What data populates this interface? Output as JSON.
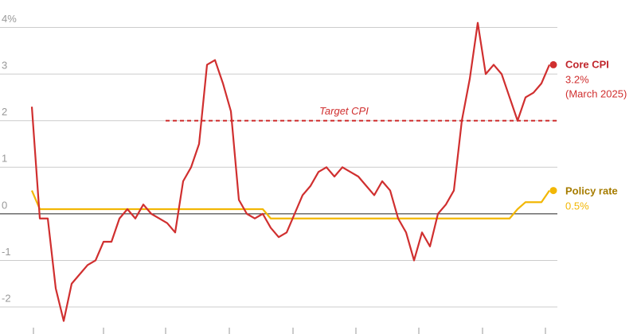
{
  "chart_data": {
    "type": "line",
    "categories": [
      null,
      null,
      null,
      null,
      null,
      null,
      null,
      null,
      null,
      null,
      null,
      null,
      null,
      null,
      null,
      null,
      null,
      null,
      null,
      null,
      null,
      null,
      null,
      null,
      null,
      null,
      null,
      null,
      null,
      null,
      null,
      null,
      null,
      null,
      null,
      null,
      null,
      null,
      null,
      null,
      null,
      null,
      null,
      null,
      null,
      null,
      null,
      null,
      null,
      null,
      null,
      null,
      null,
      null,
      null,
      null,
      null,
      null,
      null,
      null,
      null,
      null,
      null,
      null,
      null,
      null
    ],
    "series": [
      {
        "name": "Core CPI",
        "color": "#d02f2f",
        "label_color": "#c0262c",
        "last_value_label": "3.2%",
        "note": "(March 2025)",
        "values": [
          2.3,
          -0.1,
          -0.1,
          -1.6,
          -2.3,
          -1.5,
          -1.3,
          -1.1,
          -1.0,
          -0.6,
          -0.6,
          -0.1,
          0.1,
          -0.1,
          0.2,
          0.0,
          -0.1,
          -0.2,
          -0.4,
          0.7,
          1.0,
          1.5,
          3.2,
          3.3,
          2.8,
          2.2,
          0.3,
          0.0,
          -0.1,
          0.0,
          -0.3,
          -0.5,
          -0.4,
          0.0,
          0.4,
          0.6,
          0.9,
          1.0,
          0.8,
          1.0,
          0.9,
          0.8,
          0.6,
          0.4,
          0.7,
          0.5,
          -0.1,
          -0.4,
          -1.0,
          -0.4,
          -0.7,
          0.0,
          0.2,
          0.5,
          2.0,
          2.9,
          4.1,
          3.0,
          3.2,
          3.0,
          2.5,
          2.0,
          2.5,
          2.6,
          2.8,
          3.2
        ]
      },
      {
        "name": "Policy rate",
        "color": "#f2b705",
        "label_color": "#a67c00",
        "last_value_label": "0.5%",
        "values": [
          0.5,
          0.1,
          0.1,
          0.1,
          0.1,
          0.1,
          0.1,
          0.1,
          0.1,
          0.1,
          0.1,
          0.1,
          0.1,
          0.1,
          0.1,
          0.1,
          0.1,
          0.1,
          0.1,
          0.1,
          0.1,
          0.1,
          0.1,
          0.1,
          0.1,
          0.1,
          0.1,
          0.1,
          0.1,
          0.1,
          -0.1,
          -0.1,
          -0.1,
          -0.1,
          -0.1,
          -0.1,
          -0.1,
          -0.1,
          -0.1,
          -0.1,
          -0.1,
          -0.1,
          -0.1,
          -0.1,
          -0.1,
          -0.1,
          -0.1,
          -0.1,
          -0.1,
          -0.1,
          -0.1,
          -0.1,
          -0.1,
          -0.1,
          -0.1,
          -0.1,
          -0.1,
          -0.1,
          -0.1,
          -0.1,
          -0.1,
          0.1,
          0.25,
          0.25,
          0.25,
          0.5
        ]
      }
    ],
    "target": {
      "label": "Target CPI",
      "value": 2,
      "color": "#d02f2f"
    },
    "ylim": [
      -2.58,
      4.59
    ],
    "yticks": [
      -2,
      -1,
      0,
      1,
      2,
      3,
      {
        "value": 4,
        "label": "4%"
      }
    ],
    "grid": true
  }
}
